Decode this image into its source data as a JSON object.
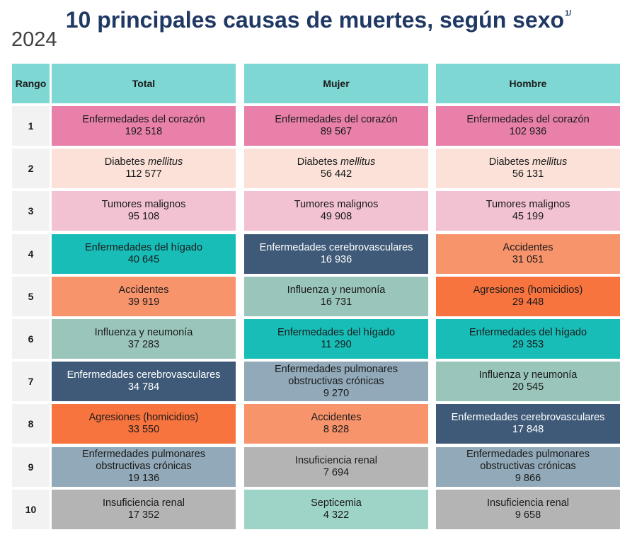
{
  "title": "10 principales causas de muertes, según sexo",
  "title_note": "1/",
  "year": "2024",
  "chart_data": {
    "type": "table",
    "columns": [
      "Rango",
      "Total",
      "Mujer",
      "Hombre"
    ],
    "ranks": [
      "1",
      "2",
      "3",
      "4",
      "5",
      "6",
      "7",
      "8",
      "9",
      "10"
    ],
    "groups": [
      {
        "name": "Total",
        "rows": [
          {
            "cause": "Enfermedades del corazón",
            "value": "192 518"
          },
          {
            "cause": "Diabetes",
            "cause_italic": "mellitus",
            "value": "112 577"
          },
          {
            "cause": "Tumores malignos",
            "value": "95 108"
          },
          {
            "cause": "Enfermedades del hígado",
            "value": "40 645"
          },
          {
            "cause": "Accidentes",
            "value": "39 919"
          },
          {
            "cause": "Influenza y neumonía",
            "value": "37 283"
          },
          {
            "cause": "Enfermedades cerebrovasculares",
            "value": "34 784"
          },
          {
            "cause": "Agresiones (homicidios)",
            "value": "33 550"
          },
          {
            "cause": "Enfermedades pulmonares",
            "cause_line2": "obstructivas crónicas",
            "value": "19 136"
          },
          {
            "cause": "Insuficiencia renal",
            "value": "17 352"
          }
        ]
      },
      {
        "name": "Mujer",
        "rows": [
          {
            "cause": "Enfermedades del corazón",
            "value": "89 567"
          },
          {
            "cause": "Diabetes",
            "cause_italic": "mellitus",
            "value": "56 442"
          },
          {
            "cause": "Tumores malignos",
            "value": "49 908"
          },
          {
            "cause": "Enfermedades cerebrovasculares",
            "value": "16 936"
          },
          {
            "cause": "Influenza y neumonía",
            "value": "16 731"
          },
          {
            "cause": "Enfermedades del hígado",
            "value": "11 290"
          },
          {
            "cause": "Enfermedades pulmonares",
            "cause_line2": "obstructivas crónicas",
            "value": "9 270"
          },
          {
            "cause": "Accidentes",
            "value": "8 828"
          },
          {
            "cause": "Insuficiencia renal",
            "value": "7 694"
          },
          {
            "cause": "Septicemia",
            "value": "4 322"
          }
        ]
      },
      {
        "name": "Hombre",
        "rows": [
          {
            "cause": "Enfermedades del corazón",
            "value": "102 936"
          },
          {
            "cause": "Diabetes",
            "cause_italic": "mellitus",
            "value": "56 131"
          },
          {
            "cause": "Tumores malignos",
            "value": "45 199"
          },
          {
            "cause": "Accidentes",
            "value": "31 051"
          },
          {
            "cause": "Agresiones (homicidios)",
            "value": "29 448"
          },
          {
            "cause": "Enfermedades del hígado",
            "value": "29 353"
          },
          {
            "cause": "Influenza y neumonía",
            "value": "20 545"
          },
          {
            "cause": "Enfermedades cerebrovasculares",
            "value": "17 848"
          },
          {
            "cause": "Enfermedades pulmonares",
            "cause_line2": "obstructivas crónicas",
            "value": "9 866"
          },
          {
            "cause": "Insuficiencia renal",
            "value": "9 658"
          }
        ]
      }
    ]
  },
  "colors": {
    "header": "#7fd7d4",
    "rank_bg": "#f2f2f2",
    "Enfermedades del corazón": "#e880aa",
    "Diabetes": "#fbe1d8",
    "Tumores malignos": "#f2c2d3",
    "Enfermedades del hígado": "#18bdb8",
    "Accidentes": "#f8946c",
    "Influenza y neumonía": "#9ac5bb",
    "Enfermedades cerebrovasculares": "#3f5a78",
    "Agresiones (homicidios)": "#f8743f",
    "Enfermedades pulmonares": "#91a9b8",
    "Insuficiencia renal": "#b4b4b4",
    "Septicemia": "#9ed3c8"
  }
}
